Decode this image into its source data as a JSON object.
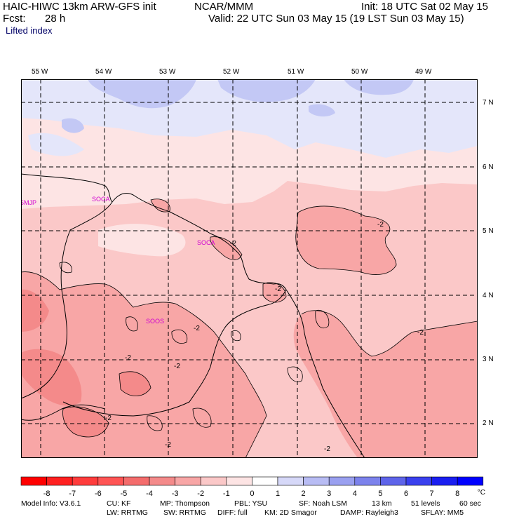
{
  "header": {
    "model": "HAIC-HIWC 13km ARW-GFS init",
    "org": "NCAR/MMM",
    "init": "Init: 18 UTC Sat 02 May 15",
    "fcst_label": "Fcst:",
    "fcst_value": "28 h",
    "valid": "Valid: 22 UTC Sun 03 May 15 (19 LST Sun 03 May 15)",
    "field": "Lifted index"
  },
  "map": {
    "lon_labels": [
      "55 W",
      "54 W",
      "53 W",
      "52 W",
      "51 W",
      "50 W",
      "49 W"
    ],
    "lat_labels": [
      "7 N",
      "6 N",
      "5 N",
      "4 N",
      "3 N",
      "2 N"
    ],
    "stations": [
      "SMJP",
      "SOCA",
      "SOCA",
      "SOOS"
    ],
    "contour_labels": [
      "-2",
      "-2",
      "-2",
      "-2",
      "-2",
      "-2",
      "-2",
      "-2",
      "-2",
      "-2"
    ],
    "colors": {
      "neg4": "#f48a8a",
      "neg3": "#f8a6a6",
      "neg2": "#fbc8c8",
      "neg1": "#fde4e4",
      "pos1": "#e4e6fa",
      "pos2": "#c3c8f5",
      "station": "#d000d0"
    }
  },
  "colorbar": {
    "labels": [
      "-8",
      "-7",
      "-6",
      "-5",
      "-4",
      "-3",
      "-2",
      "-1",
      "0",
      "1",
      "2",
      "3",
      "4",
      "5",
      "6",
      "7",
      "8"
    ],
    "unit": "°C",
    "colors": [
      "#ff0000",
      "#ff2020",
      "#ff3c3c",
      "#ff5454",
      "#f46c6c",
      "#f48a8a",
      "#f8a6a6",
      "#fbc8c8",
      "#fde4e4",
      "#ffffff",
      "#d6d8f8",
      "#b8bcf4",
      "#9aa0f0",
      "#7c82ec",
      "#5e64ea",
      "#3a40ee",
      "#1a1ef0",
      "#0000ff"
    ]
  },
  "footer": {
    "line1": [
      "Model Info: V3.6.1",
      "CU: KF",
      "MP: Thompson",
      "PBL: YSU",
      "SF: Noah LSM",
      "13 km",
      "51 levels",
      "60 sec"
    ],
    "line2": [
      "LW: RRTMG",
      "SW: RRTMG",
      "DIFF: full",
      "KM: 2D Smagor",
      "DAMP: Rayleigh3",
      "SFLAY: MM5"
    ]
  }
}
